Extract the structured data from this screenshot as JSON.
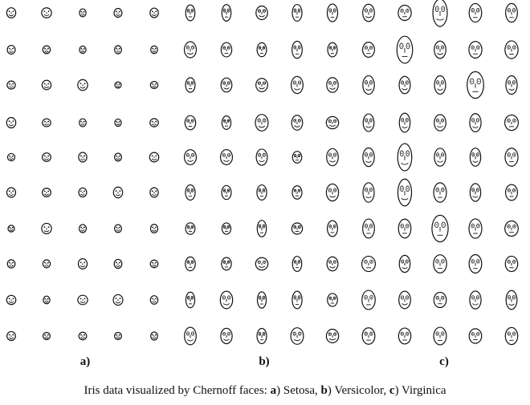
{
  "figure": {
    "panel_labels": [
      "a)",
      "b)",
      "c)"
    ],
    "caption": {
      "intro": "Iris data visualized by Chernoff faces: ",
      "a_letter": "a",
      "a_text": ") Setosa, ",
      "b_letter": "b",
      "b_text": ") Versicolor, ",
      "c_letter": "c",
      "c_text": ") Virginica"
    }
  },
  "chart_data": {
    "type": "chernoff_faces",
    "dataset": "Iris",
    "panels": [
      {
        "label": "a)",
        "species": "Setosa",
        "columns": 5,
        "rows": 10
      },
      {
        "label": "b)",
        "species": "Versicolor",
        "columns": 5,
        "rows": 10
      },
      {
        "label": "c)",
        "species": "Virginica",
        "columns": 5,
        "rows": 10
      }
    ],
    "face_style": {
      "stroke": "#111111",
      "fill": "#ffffff"
    }
  }
}
